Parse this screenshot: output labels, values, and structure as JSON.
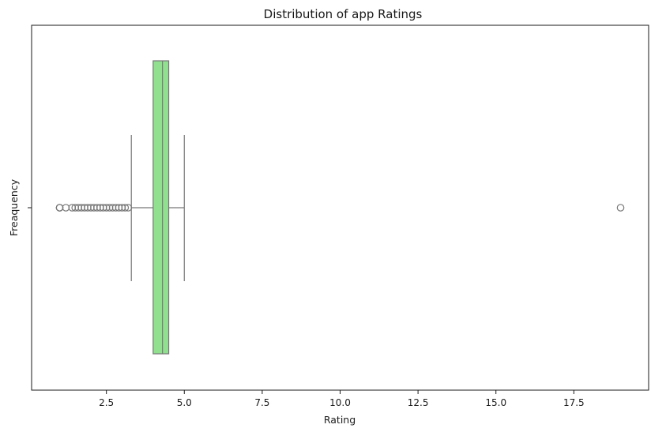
{
  "chart_data": {
    "type": "box",
    "title": "Distribution of app Ratings",
    "xlabel": "Rating",
    "ylabel": "Freaquency",
    "xlim": [
      0.1,
      19.9
    ],
    "xticks": [
      {
        "value": 2.5,
        "label": "2.5"
      },
      {
        "value": 5.0,
        "label": "5.0"
      },
      {
        "value": 7.5,
        "label": "7.5"
      },
      {
        "value": 10.0,
        "label": "10.0"
      },
      {
        "value": 12.5,
        "label": "12.5"
      },
      {
        "value": 15.0,
        "label": "15.0"
      },
      {
        "value": 17.5,
        "label": "17.5"
      }
    ],
    "orientation": "horizontal",
    "grid": false,
    "colors": {
      "box_fill": "#90e090",
      "line": "#777777",
      "axis": "#1a1a1a"
    },
    "box": {
      "q1": 4.0,
      "median": 4.3,
      "q3": 4.5,
      "whisker_low": 3.3,
      "whisker_high": 5.0
    },
    "outliers": [
      1.0,
      1.0,
      1.0,
      1.2,
      1.4,
      1.5,
      1.6,
      1.7,
      1.8,
      1.9,
      2.0,
      2.1,
      2.2,
      2.3,
      2.4,
      2.5,
      2.6,
      2.7,
      2.8,
      2.9,
      3.0,
      3.1,
      3.2,
      19.0
    ]
  }
}
